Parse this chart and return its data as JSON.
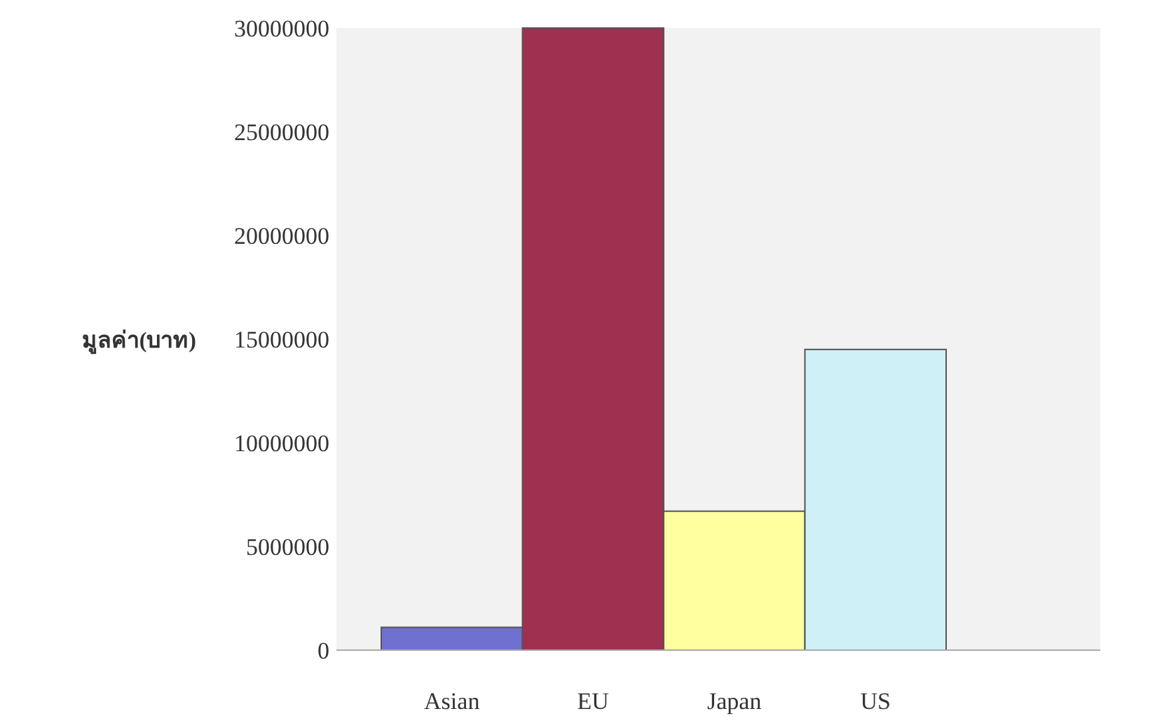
{
  "chart_data": {
    "type": "bar",
    "ylabel": "มูลค่า(บาท)",
    "categories": [
      "Asian",
      "EU",
      "Japan",
      "US"
    ],
    "values": [
      1100000,
      30000000,
      6700000,
      14500000
    ],
    "colors": [
      "#7070d0",
      "#a03050",
      "#ffffa0",
      "#d0f0f8"
    ],
    "ylim": [
      0,
      30000000
    ],
    "yticks": [
      0,
      5000000,
      10000000,
      15000000,
      20000000,
      25000000,
      30000000
    ]
  }
}
